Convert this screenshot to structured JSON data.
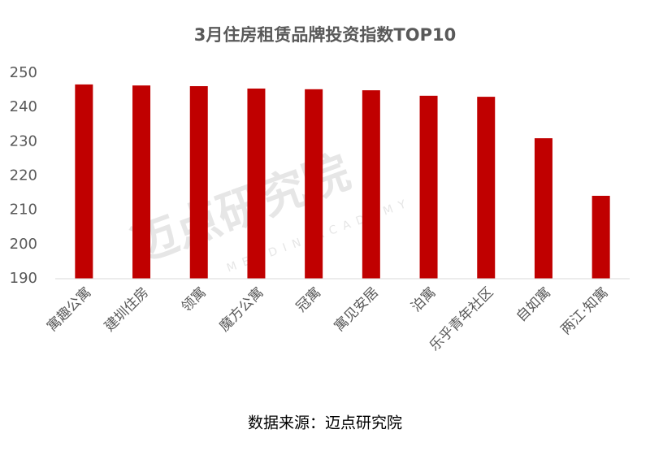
{
  "chart_data": {
    "type": "bar",
    "title": "3月住房租赁品牌投资指数TOP10",
    "categories": [
      "寓趣公寓",
      "建圳住房",
      "领寓",
      "魔方公寓",
      "冠寓",
      "寓见安居",
      "泊寓",
      "乐乎青年社区",
      "自如寓",
      "两江·知寓"
    ],
    "values": [
      246.7,
      246.4,
      246.2,
      245.5,
      245.3,
      245.0,
      243.4,
      243.1,
      231.0,
      214.2
    ],
    "color": "#c00000",
    "ylim": [
      190,
      250
    ],
    "yticks": [
      190,
      200,
      210,
      220,
      230,
      240,
      250
    ],
    "grid": false,
    "watermark": "迈点研究院",
    "watermark_sub": "MEADIN ACADEMY",
    "source": "数据来源：迈点研究院"
  }
}
